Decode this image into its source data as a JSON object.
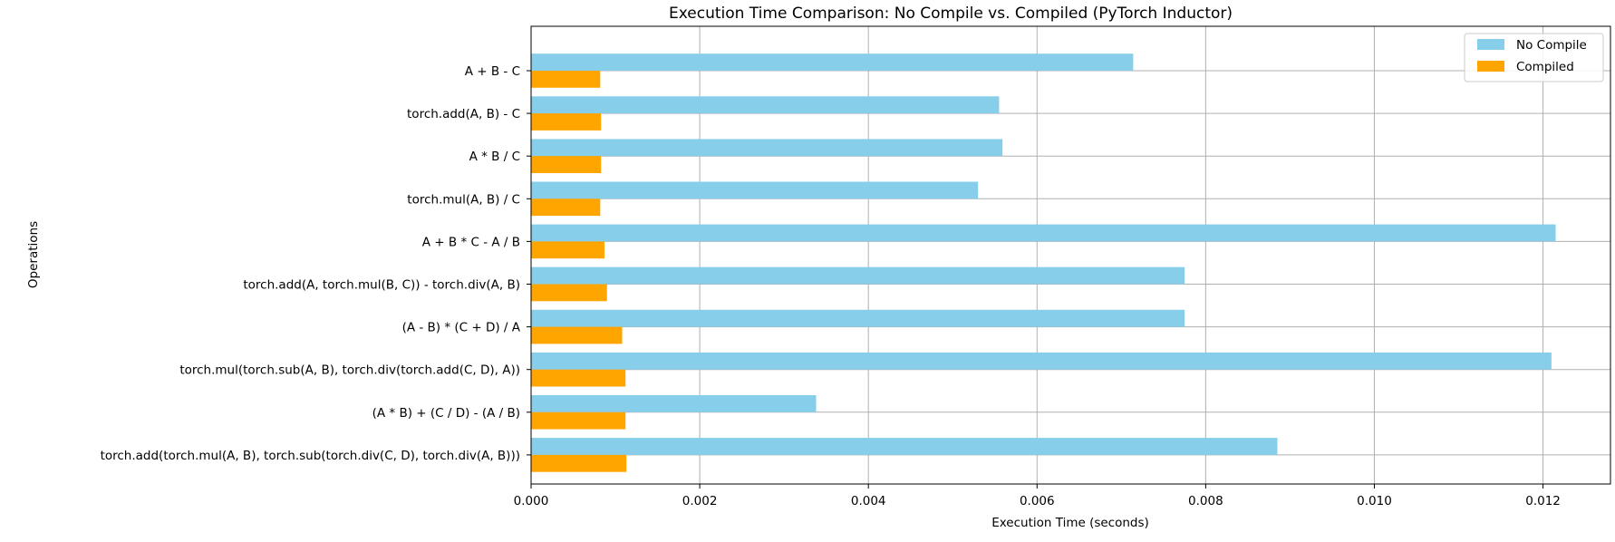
{
  "chart_data": {
    "type": "bar",
    "orientation": "horizontal",
    "title": "Execution Time Comparison: No Compile vs. Compiled (PyTorch Inductor)",
    "xlabel": "Execution Time (seconds)",
    "ylabel": "Operations",
    "categories": [
      "A + B - C",
      "torch.add(A, B) - C",
      "A * B / C",
      "torch.mul(A, B) / C",
      "A + B * C - A / B",
      "torch.add(A, torch.mul(B, C)) - torch.div(A, B)",
      "(A - B) * (C + D) / A",
      "torch.mul(torch.sub(A, B), torch.div(torch.add(C, D), A))",
      "(A * B) + (C / D) - (A / B)",
      "torch.add(torch.mul(A, B), torch.sub(torch.div(C, D), torch.div(A, B)))"
    ],
    "series": [
      {
        "name": "No Compile",
        "color": "#87ceeb",
        "values": [
          0.00714,
          0.00555,
          0.00559,
          0.0053,
          0.01215,
          0.00775,
          0.00775,
          0.0121,
          0.00338,
          0.00885
        ]
      },
      {
        "name": "Compiled",
        "color": "#ffa500",
        "values": [
          0.00082,
          0.00083,
          0.00083,
          0.00082,
          0.00087,
          0.0009,
          0.00108,
          0.00112,
          0.00112,
          0.00113
        ]
      }
    ],
    "xlim": [
      0,
      0.0128
    ],
    "xticks": [
      "0.000",
      "0.002",
      "0.004",
      "0.006",
      "0.008",
      "0.010",
      "0.012"
    ],
    "xtick_values": [
      0,
      0.002,
      0.004,
      0.006,
      0.008,
      0.01,
      0.012
    ],
    "grid": true,
    "legend_position": "top-right"
  }
}
